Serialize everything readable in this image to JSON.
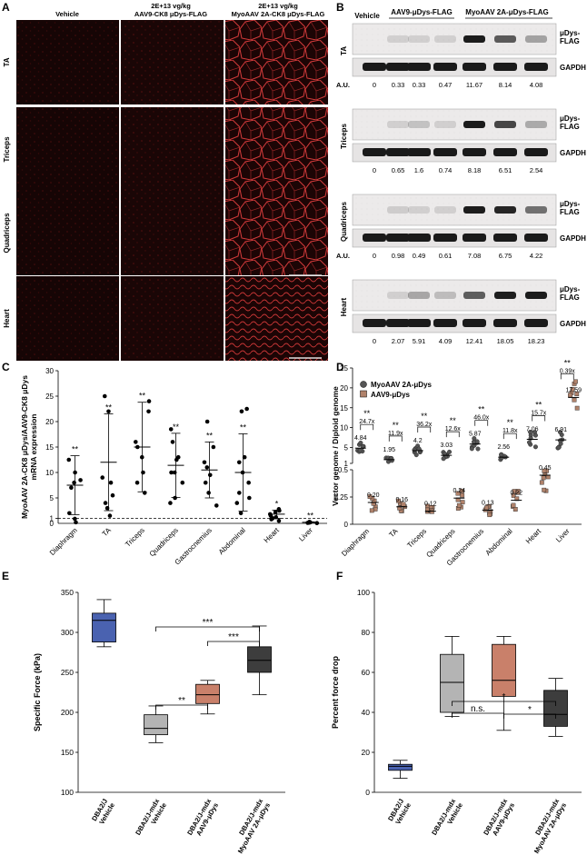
{
  "panel_letters": [
    "A",
    "B",
    "C",
    "D",
    "E",
    "F"
  ],
  "panelA": {
    "columns": [
      "Vehicle",
      "2E+13 vg/kg\nAAV9-CK8 μDys-FLAG",
      "2E+13 vg/kg\nMyoAAV 2A-CK8 μDys-FLAG"
    ],
    "rows": [
      "TA",
      "Triceps",
      "Quadriceps",
      "Heart"
    ]
  },
  "panelB": {
    "header_vehicle": "Vehicle",
    "header_groups": [
      "AAV9-μDys-FLAG",
      "MyoAAV 2A-μDys-FLAG"
    ],
    "band_labels": [
      "μDys-\nFLAG",
      "GAPDH"
    ],
    "au_label": "A.U.",
    "blots": [
      {
        "tissue": "TA",
        "au": [
          "0",
          "0.33",
          "0.33",
          "0.47",
          "11.67",
          "8.14",
          "4.08"
        ],
        "show_au_label": true
      },
      {
        "tissue": "Triceps",
        "au": [
          "0",
          "0.65",
          "1.6",
          "0.74",
          "8.18",
          "6.51",
          "2.54"
        ],
        "show_au_label": false
      },
      {
        "tissue": "Quadriceps",
        "au": [
          "0",
          "0.98",
          "0.49",
          "0.61",
          "7.08",
          "6.75",
          "4.22"
        ],
        "show_au_label": true
      },
      {
        "tissue": "Heart",
        "au": [
          "0",
          "2.07",
          "5.91",
          "4.09",
          "12.41",
          "18.05",
          "18.23"
        ],
        "show_au_label": false
      }
    ]
  },
  "chart_data": [
    {
      "panel": "C",
      "type": "scatter",
      "ylabel": "MyoAAV 2A-CK8 μDys/AAV9-CK8 μDys\nmRNA expression",
      "ylim": [
        0,
        30
      ],
      "yticks": [
        1,
        5,
        10,
        15,
        20,
        25,
        30
      ],
      "reference_line": 1,
      "categories": [
        "Diaphragm",
        "TA",
        "Triceps",
        "Quadriceps",
        "Gastrocnemius",
        "Abdominal",
        "Heart",
        "Liver"
      ],
      "mean": [
        7.5,
        12,
        15,
        11.4,
        10.5,
        10,
        1.8,
        0.2
      ],
      "sd": [
        5.8,
        9.5,
        8.8,
        6.3,
        5.5,
        7.6,
        0.8,
        0.1
      ],
      "significance": [
        "**",
        "**",
        "**",
        "**",
        "**",
        "**",
        "*",
        "**"
      ],
      "points": [
        [
          0.9,
          0.2,
          2,
          7,
          8,
          10,
          12.5,
          8.5
        ],
        [
          1.5,
          3,
          4,
          5.5,
          8,
          9,
          22,
          25
        ],
        [
          6,
          8,
          10,
          13,
          15,
          16,
          22,
          24
        ],
        [
          4,
          5,
          8,
          10,
          10,
          12.5,
          13,
          16,
          18.5
        ],
        [
          3.5,
          6,
          8,
          9.5,
          11,
          12,
          15,
          20
        ],
        [
          2,
          4,
          5,
          6,
          8,
          10,
          12,
          13,
          22,
          22.5
        ],
        [
          0.5,
          0.8,
          1,
          1.2,
          1.5,
          1.8,
          2.2,
          2.5,
          2.8
        ],
        [
          0.05,
          0.1,
          0.15,
          0.2,
          0.3
        ]
      ]
    },
    {
      "panel": "D",
      "type": "scatter",
      "ylabel": "Vector genome / Diploid genome",
      "categories": [
        "Diaphragm",
        "TA",
        "Triceps",
        "Quadriceps",
        "Gastrocnemius",
        "Abdominal",
        "Heart",
        "Liver"
      ],
      "y_lower_ticks": [
        0,
        0.25,
        0.5
      ],
      "y_upper_ticks": [
        1,
        5,
        10,
        15,
        20,
        25
      ],
      "series": [
        {
          "name": "MyoAAV 2A-μDys",
          "color": "#555555",
          "mean": [
            4.84,
            1.95,
            4.2,
            3.03,
            5.87,
            2.56,
            7.06,
            6.91
          ]
        },
        {
          "name": "AAV9-μDys",
          "color": "#b0826b",
          "mean": [
            0.2,
            0.16,
            0.12,
            0.24,
            0.13,
            0.22,
            0.45,
            17.59
          ]
        }
      ],
      "fold": [
        "24.7x",
        "11.9x",
        "36.2x",
        "12.6x",
        "46.0x",
        "11.8x",
        "15.7x",
        "0.39x"
      ],
      "significance": [
        "**",
        "**",
        "**",
        "**",
        "**",
        "**",
        "**",
        "**"
      ]
    },
    {
      "panel": "E",
      "type": "box",
      "ylabel": "Specific Force (kPa)",
      "ylim": [
        100,
        350
      ],
      "yticks": [
        100,
        150,
        200,
        250,
        300,
        350
      ],
      "categories": [
        "DBA2/J\nVehicle",
        "DBA2/J-mdx\nVehicle",
        "DBA2/J-mdx\nAAV9-μDys",
        "DBA2/J-mdx\nMyoAAV 2A-μDys"
      ],
      "colors": [
        "#4a62b0",
        "#b4b4b4",
        "#c9806a",
        "#3d3d3d"
      ],
      "boxes": [
        {
          "min": 282,
          "q1": 288,
          "median": 315,
          "q3": 324,
          "max": 341
        },
        {
          "min": 162,
          "q1": 172,
          "median": 180,
          "q3": 197,
          "max": 208
        },
        {
          "min": 198,
          "q1": 211,
          "median": 222,
          "q3": 235,
          "max": 240
        },
        {
          "min": 222,
          "q1": 250,
          "median": 265,
          "q3": 282,
          "max": 308
        }
      ],
      "comparisons": [
        {
          "from": 1,
          "to": 3,
          "label": "***"
        },
        {
          "from": 2,
          "to": 3,
          "label": "***"
        },
        {
          "from": 1,
          "to": 2,
          "label": "**"
        }
      ]
    },
    {
      "panel": "F",
      "type": "box",
      "ylabel": "Percent force drop",
      "ylim": [
        0,
        100
      ],
      "yticks": [
        0,
        20,
        40,
        60,
        80,
        100
      ],
      "categories": [
        "DBA2/J\nVehicle",
        "DBA2/J-mdx\nVehicle",
        "DBA2/J-mdx\nAAV9-μDys",
        "DBA2/J-mdx\nMyoAAV 2A-μDys"
      ],
      "colors": [
        "#4a62b0",
        "#b4b4b4",
        "#c9806a",
        "#3d3d3d"
      ],
      "boxes": [
        {
          "min": 7,
          "q1": 11,
          "median": 13,
          "q3": 14,
          "max": 16
        },
        {
          "min": 38,
          "q1": 40,
          "median": 55,
          "q3": 69,
          "max": 78
        },
        {
          "min": 31,
          "q1": 48,
          "median": 56,
          "q3": 74,
          "max": 78
        },
        {
          "min": 28,
          "q1": 33,
          "median": 39,
          "q3": 51,
          "max": 57
        }
      ],
      "comparisons": [
        {
          "from": 1,
          "to": 3,
          "label": "*"
        },
        {
          "from": 1,
          "to": 2,
          "label": "n.s."
        },
        {
          "from": 2,
          "to": 3,
          "label": "*"
        }
      ]
    }
  ]
}
